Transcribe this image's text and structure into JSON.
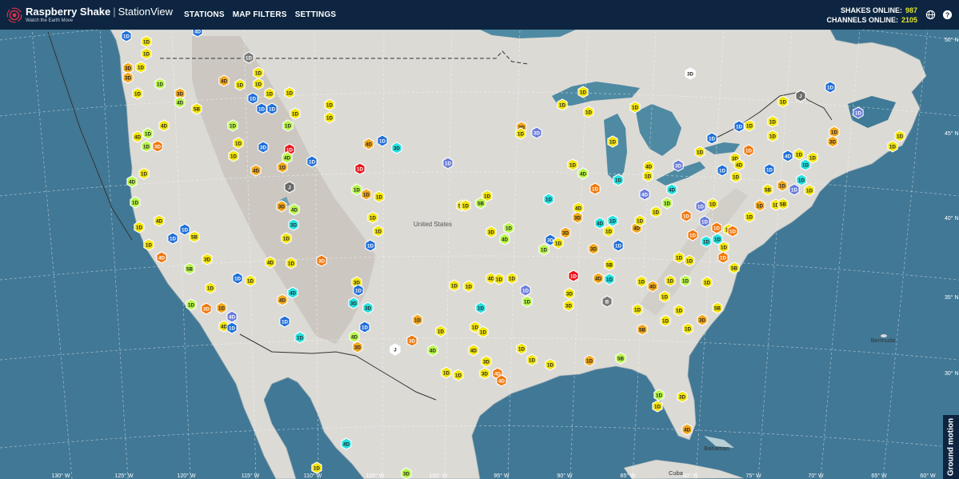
{
  "header": {
    "brand": "Raspberry Shake",
    "separator": "|",
    "product": "StationView",
    "tagline": "Watch the Earth Move",
    "nav": [
      "STATIONS",
      "MAP FILTERS",
      "SETTINGS"
    ],
    "stats": [
      {
        "label": "SHAKES ONLINE:",
        "value": "987"
      },
      {
        "label": "CHANNELS ONLINE:",
        "value": "2105"
      }
    ],
    "icons": [
      "globe-icon",
      "help-icon"
    ]
  },
  "map": {
    "labels": {
      "country": "United States",
      "bermuda": "Bermuda",
      "bahamas": "Bahamas",
      "cuba": "Cuba"
    },
    "lon_labels": [
      "130° W",
      "125° W",
      "120° W",
      "115° W",
      "110° W",
      "105° W",
      "100° W",
      "95° W",
      "90° W",
      "85° W",
      "80° W",
      "75° W",
      "70° W",
      "65° W",
      "60° W"
    ],
    "lat_labels": [
      "50° N",
      "45° N",
      "40° N",
      "35° N",
      "30° N"
    ],
    "colors": {
      "ocean": "#3a6f8a",
      "land": "#dcdad5",
      "border": "#333333"
    }
  },
  "legend": {
    "ground_motion": "Ground motion"
  },
  "stations": [
    [
      "1D",
      158,
      45,
      "#1e6fd9"
    ],
    [
      "1D",
      183,
      52,
      "#f2e40c"
    ],
    [
      "1D",
      183,
      67,
      "#f2e40c"
    ],
    [
      "3D",
      160,
      85,
      "#f2a81e"
    ],
    [
      "1D",
      176,
      84,
      "#f2e40c"
    ],
    [
      "3D",
      160,
      97,
      "#f2a81e"
    ],
    [
      "1D",
      200,
      105,
      "#b8f54a"
    ],
    [
      "1D",
      172,
      117,
      "#f2e40c"
    ],
    [
      "3D",
      225,
      117,
      "#f2a81e"
    ],
    [
      "4D",
      280,
      101,
      "#f2a81e"
    ],
    [
      "1D",
      300,
      106,
      "#f2e40c"
    ],
    [
      "1D",
      323,
      91,
      "#f2e40c"
    ],
    [
      "1D",
      323,
      105,
      "#f2e40c"
    ],
    [
      "1D",
      316,
      123,
      "#1e6fd9"
    ],
    [
      "1D",
      337,
      117,
      "#f2e40c"
    ],
    [
      "1D",
      362,
      116,
      "#f2e40c"
    ],
    [
      "1D",
      327,
      136,
      "#1e6fd9"
    ],
    [
      "1D",
      340,
      136,
      "#1e6fd9"
    ],
    [
      "1D",
      369,
      142,
      "#f2e40c"
    ],
    [
      "1D",
      360,
      157,
      "#b8f54a"
    ],
    [
      "4D",
      225,
      128,
      "#b8f54a"
    ],
    [
      "5B",
      246,
      136,
      "#f2e40c"
    ],
    [
      "4D",
      205,
      157,
      "#f2e40c"
    ],
    [
      "1D",
      185,
      167,
      "#b8f54a"
    ],
    [
      "4D",
      172,
      171,
      "#f2e40c"
    ],
    [
      "1D",
      183,
      183,
      "#b8f54a"
    ],
    [
      "3D",
      197,
      183,
      "#f2780c"
    ],
    [
      "1D",
      291,
      157,
      "#b8f54a"
    ],
    [
      "1D",
      298,
      179,
      "#f2e40c"
    ],
    [
      "1D",
      292,
      195,
      "#f2e40c"
    ],
    [
      "3D",
      329,
      184,
      "#1e6fd9"
    ],
    [
      "1D",
      362,
      187,
      "#e8141a"
    ],
    [
      "4D",
      359,
      197,
      "#b8f54a"
    ],
    [
      "1D",
      390,
      202,
      "#1e6fd9"
    ],
    [
      "1D",
      353,
      209,
      "#f2a81e"
    ],
    [
      "4D",
      320,
      213,
      "#f2a81e"
    ],
    [
      "1D",
      412,
      131,
      "#f2e40c"
    ],
    [
      "1D",
      412,
      147,
      "#f2e40c"
    ],
    [
      "1D",
      450,
      211,
      "#e8141a"
    ],
    [
      "4D",
      461,
      180,
      "#f2a81e"
    ],
    [
      "1D",
      478,
      176,
      "#1e6fd9"
    ],
    [
      "3D",
      496,
      185,
      "#25e0e0"
    ],
    [
      "1D",
      560,
      204,
      "#6b7ddb"
    ],
    [
      "1D",
      180,
      217,
      "#f2e40c"
    ],
    [
      "4D",
      165,
      227,
      "#b8f54a"
    ],
    [
      "1D",
      169,
      253,
      "#b8f54a"
    ],
    [
      "J",
      362,
      234,
      "#6b6b6b"
    ],
    [
      "1D",
      446,
      237,
      "#b8f54a"
    ],
    [
      "1D",
      458,
      243,
      "#f2a81e"
    ],
    [
      "1D",
      474,
      246,
      "#f2e40c"
    ],
    [
      "3D",
      352,
      258,
      "#f2a81e"
    ],
    [
      "4D",
      368,
      262,
      "#b8f54a"
    ],
    [
      "4D",
      199,
      276,
      "#f2e40c"
    ],
    [
      "1D",
      174,
      284,
      "#f2e40c"
    ],
    [
      "1D",
      231,
      287,
      "#1e6fd9"
    ],
    [
      "1D",
      216,
      298,
      "#1e6fd9"
    ],
    [
      "5B",
      243,
      296,
      "#f2e40c"
    ],
    [
      "1D",
      186,
      306,
      "#f2e40c"
    ],
    [
      "4D",
      202,
      322,
      "#f2780c"
    ],
    [
      "3D",
      259,
      324,
      "#f2e40c"
    ],
    [
      "5B",
      237,
      336,
      "#b8f54a"
    ],
    [
      "3D",
      367,
      281,
      "#25e0e0"
    ],
    [
      "1D",
      358,
      298,
      "#f2e40c"
    ],
    [
      "1D",
      466,
      272,
      "#f2e40c"
    ],
    [
      "1D",
      473,
      289,
      "#f2e40c"
    ],
    [
      "1D",
      463,
      307,
      "#1e6fd9"
    ],
    [
      "4D",
      338,
      328,
      "#f2e40c"
    ],
    [
      "1D",
      364,
      329,
      "#f2e40c"
    ],
    [
      "3D",
      402,
      326,
      "#f2780c"
    ],
    [
      "1D",
      297,
      348,
      "#1e6fd9"
    ],
    [
      "1D",
      313,
      351,
      "#f2e40c"
    ],
    [
      "1D",
      263,
      360,
      "#f2e40c"
    ],
    [
      "1D",
      239,
      381,
      "#b8f54a"
    ],
    [
      "3D",
      258,
      386,
      "#f2780c"
    ],
    [
      "1D",
      277,
      385,
      "#f2a81e"
    ],
    [
      "4D",
      290,
      396,
      "#6b7ddb"
    ],
    [
      "4D",
      280,
      408,
      "#f2e40c"
    ],
    [
      "1D",
      290,
      410,
      "#1e6fd9"
    ],
    [
      "4D",
      366,
      366,
      "#25e0e0"
    ],
    [
      "4D",
      353,
      375,
      "#f2a81e"
    ],
    [
      "1D",
      356,
      402,
      "#1e6fd9"
    ],
    [
      "3D",
      446,
      353,
      "#f2e40c"
    ],
    [
      "1D",
      448,
      363,
      "#1e6fd9"
    ],
    [
      "3D",
      442,
      379,
      "#25e0e0"
    ],
    [
      "3D",
      460,
      385,
      "#25e0e0"
    ],
    [
      "1D",
      456,
      409,
      "#1e6fd9"
    ],
    [
      "1D",
      375,
      422,
      "#25e0e0"
    ],
    [
      "4D",
      443,
      421,
      "#b8f54a"
    ],
    [
      "3D",
      447,
      434,
      "#f2a81e"
    ],
    [
      "J",
      494,
      437,
      "#ffffff"
    ],
    [
      "3D",
      515,
      426,
      "#f2780c"
    ],
    [
      "4D",
      541,
      438,
      "#b8f54a"
    ],
    [
      "1D",
      522,
      400,
      "#f2a81e"
    ],
    [
      "1D",
      551,
      414,
      "#f2e40c"
    ],
    [
      "5B",
      577,
      257,
      "#f2e40c"
    ],
    [
      "1D",
      582,
      257,
      "#f2e40c"
    ],
    [
      "1D",
      609,
      245,
      "#f2e40c"
    ],
    [
      "5B",
      601,
      254,
      "#b8f54a"
    ],
    [
      "3D",
      614,
      290,
      "#f2e40c"
    ],
    [
      "4D",
      631,
      299,
      "#b8f54a"
    ],
    [
      "1D",
      636,
      285,
      "#b8f54a"
    ],
    [
      "1D",
      680,
      312,
      "#b8f54a"
    ],
    [
      "3D",
      688,
      300,
      "#1e6fd9"
    ],
    [
      "3D",
      707,
      291,
      "#f2a81e"
    ],
    [
      "1D",
      698,
      304,
      "#f2e40c"
    ],
    [
      "1D",
      568,
      357,
      "#f2e40c"
    ],
    [
      "1D",
      586,
      358,
      "#f2e40c"
    ],
    [
      "4D",
      614,
      348,
      "#f2e40c"
    ],
    [
      "1D",
      624,
      349,
      "#f2e40c"
    ],
    [
      "1D",
      640,
      348,
      "#f2e40c"
    ],
    [
      "1D",
      657,
      363,
      "#6b7ddb"
    ],
    [
      "1D",
      659,
      377,
      "#b8f54a"
    ],
    [
      "1D",
      601,
      385,
      "#25e0e0"
    ],
    [
      "1D",
      594,
      409,
      "#f2e40c"
    ],
    [
      "1D",
      604,
      415,
      "#f2e40c"
    ],
    [
      "4D",
      592,
      438,
      "#f2e40c"
    ],
    [
      "3D",
      608,
      452,
      "#f2e40c"
    ],
    [
      "3D",
      606,
      467,
      "#f2e40c"
    ],
    [
      "4D",
      622,
      467,
      "#f2780c"
    ],
    [
      "1D",
      573,
      469,
      "#f2e40c"
    ],
    [
      "1D",
      558,
      466,
      "#f2e40c"
    ],
    [
      "4D",
      627,
      476,
      "#f2780c"
    ],
    [
      "1D",
      688,
      456,
      "#f2e40c"
    ],
    [
      "1D",
      652,
      436,
      "#f2e40c"
    ],
    [
      "1D",
      665,
      450,
      "#f2e40c"
    ],
    [
      "1D",
      737,
      451,
      "#f2a81e"
    ],
    [
      "5B",
      776,
      448,
      "#b8f54a"
    ],
    [
      "1D",
      717,
      345,
      "#e8141a"
    ],
    [
      "3D",
      712,
      367,
      "#f2e40c"
    ],
    [
      "3D",
      711,
      382,
      "#f2e40c"
    ],
    [
      "3D",
      742,
      311,
      "#f2a81e"
    ],
    [
      "5B",
      762,
      331,
      "#f2e40c"
    ],
    [
      "4D",
      748,
      348,
      "#f2a81e"
    ],
    [
      "1D",
      762,
      349,
      "#25e0e0"
    ],
    [
      "1D",
      802,
      352,
      "#f2e40c"
    ],
    [
      "4D",
      816,
      358,
      "#f2a81e"
    ],
    [
      "B",
      759,
      377,
      "#7a7a7a"
    ],
    [
      "1D",
      797,
      387,
      "#f2e40c"
    ],
    [
      "5B",
      803,
      412,
      "#f2a81e"
    ],
    [
      "1D",
      832,
      401,
      "#f2e40c"
    ],
    [
      "1D",
      686,
      249,
      "#25e0e0"
    ],
    [
      "4D",
      723,
      260,
      "#f2e40c"
    ],
    [
      "3D",
      722,
      272,
      "#f2a81e"
    ],
    [
      "4D",
      750,
      279,
      "#25e0e0"
    ],
    [
      "1D",
      766,
      276,
      "#25e0e0"
    ],
    [
      "1D",
      761,
      289,
      "#f2e40c"
    ],
    [
      "4D",
      796,
      285,
      "#f2a81e"
    ],
    [
      "1D",
      773,
      307,
      "#1e6fd9"
    ],
    [
      "1D",
      703,
      131,
      "#f2e40c"
    ],
    [
      "1D",
      729,
      115,
      "#f2e40c"
    ],
    [
      "1D",
      736,
      140,
      "#f2e40c"
    ],
    [
      "3D",
      652,
      159,
      "#f2a81e"
    ],
    [
      "3D",
      671,
      166,
      "#6b7ddb"
    ],
    [
      "1D",
      651,
      167,
      "#f2e40c"
    ],
    [
      "1D",
      766,
      177,
      "#f2e40c"
    ],
    [
      "1D",
      794,
      134,
      "#f2e40c"
    ],
    [
      "3D",
      863,
      92,
      "#ffffff"
    ],
    [
      "1D",
      311,
      72,
      "#7a7a7a"
    ],
    [
      "4D",
      247,
      39,
      "#1e6fd9"
    ],
    [
      "1D",
      716,
      206,
      "#f2e40c"
    ],
    [
      "4D",
      729,
      217,
      "#b8f54a"
    ],
    [
      "1D",
      744,
      236,
      "#f2780c"
    ],
    [
      "1D",
      773,
      225,
      "#25e0e0"
    ],
    [
      "4D",
      806,
      243,
      "#6b7ddb"
    ],
    [
      "4D",
      811,
      208,
      "#f2e40c"
    ],
    [
      "1D",
      810,
      220,
      "#f2e40c"
    ],
    [
      "3D",
      848,
      207,
      "#6b7ddb"
    ],
    [
      "4D",
      840,
      237,
      "#25e0e0"
    ],
    [
      "1D",
      820,
      265,
      "#f2e40c"
    ],
    [
      "1D",
      834,
      254,
      "#b8f54a"
    ],
    [
      "1D",
      800,
      276,
      "#f2e40c"
    ],
    [
      "1D",
      858,
      270,
      "#f2780c"
    ],
    [
      "1D",
      875,
      190,
      "#f2e40c"
    ],
    [
      "1D",
      890,
      173,
      "#1e6fd9"
    ],
    [
      "1D",
      936,
      188,
      "#f2780c"
    ],
    [
      "3D",
      919,
      198,
      "#f2e40c"
    ],
    [
      "1D",
      903,
      213,
      "#1e6fd9"
    ],
    [
      "4D",
      924,
      206,
      "#f2e40c"
    ],
    [
      "1D",
      962,
      212,
      "#1e6fd9"
    ],
    [
      "1D",
      920,
      221,
      "#f2e40c"
    ],
    [
      "5B",
      960,
      237,
      "#f2e40c"
    ],
    [
      "1D",
      978,
      232,
      "#f2a81e"
    ],
    [
      "1D",
      993,
      237,
      "#6b7ddb"
    ],
    [
      "1D",
      1002,
      225,
      "#25e0e0"
    ],
    [
      "1D",
      1012,
      238,
      "#f2e40c"
    ],
    [
      "1D",
      1007,
      206,
      "#25e0e0"
    ],
    [
      "1D",
      1016,
      197,
      "#f2e40c"
    ],
    [
      "1D",
      999,
      193,
      "#f2e40c"
    ],
    [
      "4D",
      985,
      195,
      "#1e6fd9"
    ],
    [
      "1D",
      966,
      170,
      "#f2e40c"
    ],
    [
      "1D",
      966,
      152,
      "#f2e40c"
    ],
    [
      "1D",
      937,
      157,
      "#f2e40c"
    ],
    [
      "1D",
      924,
      158,
      "#1e6fd9"
    ],
    [
      "1D",
      979,
      127,
      "#f2e40c"
    ],
    [
      "J",
      1001,
      120,
      "#6b6b6b"
    ],
    [
      "1D",
      1038,
      109,
      "#1e6fd9"
    ],
    [
      "1D",
      1073,
      141,
      "#6b7ddb"
    ],
    [
      "1D",
      1043,
      165,
      "#f2a81e"
    ],
    [
      "3D",
      1041,
      177,
      "#f2a81e"
    ],
    [
      "1D",
      1125,
      170,
      "#f2e40c"
    ],
    [
      "1D",
      1116,
      183,
      "#f2e40c"
    ],
    [
      "1D",
      891,
      255,
      "#f2e40c"
    ],
    [
      "1D",
      876,
      258,
      "#6b7ddb"
    ],
    [
      "1D",
      881,
      277,
      "#6b7ddb"
    ],
    [
      "1D",
      896,
      285,
      "#f2780c"
    ],
    [
      "1D",
      911,
      287,
      "#f2e40c"
    ],
    [
      "1D",
      937,
      271,
      "#f2e40c"
    ],
    [
      "1D",
      950,
      257,
      "#f2a81e"
    ],
    [
      "1D",
      970,
      256,
      "#f2e40c"
    ],
    [
      "5B",
      979,
      255,
      "#f2e40c"
    ],
    [
      "1D",
      866,
      294,
      "#f2780c"
    ],
    [
      "1D",
      883,
      302,
      "#25e0e0"
    ],
    [
      "1D",
      897,
      299,
      "#25e0e0"
    ],
    [
      "1D",
      905,
      309,
      "#f2e40c"
    ],
    [
      "1D",
      916,
      289,
      "#f2780c"
    ],
    [
      "1D",
      862,
      326,
      "#f2e40c"
    ],
    [
      "1D",
      849,
      322,
      "#f2e40c"
    ],
    [
      "1D",
      904,
      322,
      "#f2780c"
    ],
    [
      "5B",
      918,
      335,
      "#f2e40c"
    ],
    [
      "1D",
      884,
      353,
      "#f2e40c"
    ],
    [
      "1D",
      857,
      351,
      "#b8f54a"
    ],
    [
      "1D",
      838,
      351,
      "#f2e40c"
    ],
    [
      "1D",
      831,
      371,
      "#f2e40c"
    ],
    [
      "1D",
      849,
      388,
      "#f2e40c"
    ],
    [
      "5B",
      897,
      385,
      "#f2e40c"
    ],
    [
      "3D",
      878,
      400,
      "#f2a81e"
    ],
    [
      "1D",
      860,
      411,
      "#f2e40c"
    ],
    [
      "1D",
      824,
      494,
      "#b8f54a"
    ],
    [
      "1D",
      822,
      508,
      "#f2e40c"
    ],
    [
      "3D",
      853,
      496,
      "#f2e40c"
    ],
    [
      "4D",
      859,
      537,
      "#f2a81e"
    ],
    [
      "4D",
      433,
      555,
      "#25e0e0"
    ],
    [
      "1D",
      396,
      585,
      "#f2e40c"
    ],
    [
      "3D",
      508,
      592,
      "#b8f54a"
    ]
  ]
}
